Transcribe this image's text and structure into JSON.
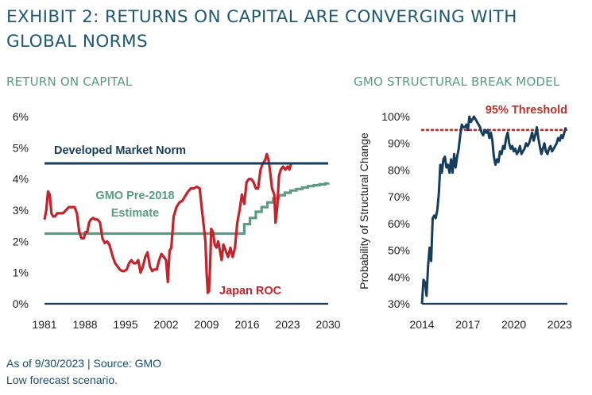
{
  "header": {
    "title": "EXHIBIT 2: RETURNS ON CAPITAL ARE CONVERGING WITH GLOBAL NORMS"
  },
  "footer": {
    "source": "As of 9/30/2023 | Source: GMO",
    "note": "Low forecast scenario."
  },
  "colors": {
    "title": "#1e5a73",
    "subtitle": "#5a9a86",
    "navy": "#163d5c",
    "red": "#c3242b",
    "green": "#5a9a86",
    "threshold": "#b5342e"
  },
  "chart_data": [
    {
      "type": "line",
      "title": "RETURN ON CAPITAL",
      "xlabel": "",
      "ylabel": "",
      "xlim": [
        1981,
        2030
      ],
      "ylim": [
        0,
        6
      ],
      "xticks": [
        1981,
        1988,
        1995,
        2002,
        2009,
        2016,
        2023,
        2030
      ],
      "yticks": [
        0,
        1,
        2,
        3,
        4,
        5,
        6
      ],
      "ytick_labels": [
        "0%",
        "1%",
        "2%",
        "3%",
        "4%",
        "5%",
        "6%"
      ],
      "grid": false,
      "annotations": {
        "norm_label": "Developed Market Norm",
        "estimate_label_line1": "GMO Pre-2018",
        "estimate_label_line2": "Estimate",
        "roc_label": "Japan ROC"
      },
      "series": [
        {
          "name": "Japan ROC",
          "color": "#c3242b",
          "x": [
            1981.0,
            1981.3,
            1981.6,
            1981.9,
            1982.2,
            1982.5,
            1982.8,
            1983.2,
            1983.7,
            1984.2,
            1984.7,
            1985.2,
            1985.7,
            1986.2,
            1986.6,
            1987.0,
            1987.4,
            1987.8,
            1988.1,
            1988.4,
            1988.7,
            1989.0,
            1989.4,
            1989.8,
            1990.2,
            1990.6,
            1991.0,
            1991.4,
            1991.8,
            1992.2,
            1992.5,
            1992.8,
            1993.2,
            1993.6,
            1994.0,
            1994.4,
            1994.8,
            1995.2,
            1995.6,
            1996.0,
            1996.4,
            1996.8,
            1997.2,
            1997.6,
            1998.0,
            1998.4,
            1998.8,
            1999.2,
            1999.6,
            2000.0,
            2000.4,
            2000.8,
            2001.2,
            2001.6,
            2002.0,
            2002.3,
            2002.6,
            2002.9,
            2003.3,
            2003.8,
            2004.3,
            2004.8,
            2005.3,
            2005.8,
            2006.3,
            2006.8,
            2007.3,
            2007.8,
            2008.2,
            2008.5,
            2008.8,
            2009.0,
            2009.2,
            2009.4,
            2009.6,
            2009.8,
            2010.1,
            2010.4,
            2010.7,
            2011.0,
            2011.3,
            2011.6,
            2011.9,
            2012.3,
            2012.7,
            2013.1,
            2013.5,
            2013.9,
            2014.3,
            2014.7,
            2015.1,
            2015.5,
            2015.9,
            2016.3,
            2016.7,
            2017.1,
            2017.5,
            2017.9,
            2018.3,
            2018.7,
            2019.1,
            2019.4,
            2019.7,
            2020.0,
            2020.3,
            2020.5,
            2020.7,
            2020.9,
            2021.2,
            2021.5,
            2021.8,
            2022.2,
            2022.6,
            2023.0,
            2023.3,
            2023.6
          ],
          "values": [
            2.7,
            3.0,
            3.6,
            3.5,
            2.9,
            2.8,
            2.8,
            2.9,
            2.9,
            2.9,
            3.0,
            3.1,
            3.1,
            3.1,
            2.9,
            2.3,
            2.1,
            2.1,
            2.3,
            2.3,
            2.6,
            2.7,
            2.75,
            2.7,
            2.7,
            2.6,
            2.1,
            1.95,
            2.0,
            1.9,
            1.7,
            1.5,
            1.3,
            1.2,
            1.1,
            1.05,
            1.05,
            1.1,
            1.3,
            1.4,
            1.3,
            1.3,
            1.4,
            1.0,
            1.2,
            1.5,
            1.65,
            1.2,
            1.05,
            1.1,
            1.1,
            1.4,
            1.6,
            1.5,
            1.4,
            0.7,
            1.7,
            1.8,
            2.8,
            3.1,
            3.25,
            3.3,
            3.45,
            3.6,
            3.7,
            3.7,
            3.75,
            3.7,
            3.0,
            2.5,
            2.0,
            1.0,
            0.35,
            0.4,
            1.2,
            2.4,
            2.3,
            1.9,
            1.8,
            2.0,
            1.7,
            1.4,
            1.9,
            1.7,
            1.5,
            1.8,
            1.5,
            1.8,
            2.6,
            3.0,
            3.5,
            3.2,
            3.9,
            4.0,
            4.0,
            3.9,
            3.7,
            3.7,
            4.3,
            4.5,
            4.6,
            4.8,
            4.6,
            4.2,
            3.7,
            3.6,
            3.5,
            2.6,
            3.1,
            4.1,
            4.3,
            4.4,
            4.3,
            4.4,
            4.3,
            4.5
          ]
        },
        {
          "name": "Developed Market Norm",
          "color": "#163d5c",
          "x": [
            1981,
            2030
          ],
          "values": [
            4.5,
            4.5
          ]
        },
        {
          "name": "GMO Pre-2018 Estimate",
          "color": "#5a9a86",
          "x": [
            1981.0,
            2014.5,
            2015.5,
            2016.5,
            2017.5,
            2018.5,
            2019.5,
            2020.5,
            2021.5,
            2022.5,
            2023.5,
            2024.5,
            2025.5,
            2026.5,
            2027.5,
            2028.5,
            2029.5,
            2030.0
          ],
          "values": [
            2.25,
            2.25,
            2.55,
            2.75,
            2.95,
            3.1,
            3.25,
            3.38,
            3.48,
            3.56,
            3.63,
            3.68,
            3.73,
            3.77,
            3.8,
            3.83,
            3.86,
            3.88
          ],
          "stepped": true
        }
      ]
    },
    {
      "type": "line",
      "title": "GMO STRUCTURAL BREAK MODEL",
      "xlabel": "",
      "ylabel": "Probability of Structural Change",
      "xlim": [
        2014,
        2023.5
      ],
      "ylim": [
        30,
        100
      ],
      "xticks": [
        2014,
        2017,
        2020,
        2023
      ],
      "yticks": [
        30,
        40,
        50,
        60,
        70,
        80,
        90,
        100
      ],
      "ytick_labels": [
        "30%",
        "40%",
        "50%",
        "60%",
        "70%",
        "80%",
        "90%",
        "100%"
      ],
      "grid": false,
      "annotations": {
        "threshold_label": "95% Threshold"
      },
      "threshold": 95,
      "series": [
        {
          "name": "Probability of Structural Change",
          "color": "#163d5c",
          "x": [
            2014.0,
            2014.1,
            2014.2,
            2014.3,
            2014.4,
            2014.5,
            2014.6,
            2014.7,
            2014.8,
            2014.9,
            2015.0,
            2015.1,
            2015.2,
            2015.3,
            2015.4,
            2015.5,
            2015.6,
            2015.7,
            2015.8,
            2015.9,
            2016.0,
            2016.1,
            2016.2,
            2016.3,
            2016.4,
            2016.5,
            2016.6,
            2016.7,
            2016.8,
            2016.9,
            2017.0,
            2017.1,
            2017.2,
            2017.3,
            2017.4,
            2017.5,
            2017.6,
            2017.7,
            2017.8,
            2017.9,
            2018.0,
            2018.1,
            2018.2,
            2018.3,
            2018.4,
            2018.5,
            2018.6,
            2018.7,
            2018.8,
            2018.9,
            2019.0,
            2019.1,
            2019.2,
            2019.3,
            2019.4,
            2019.5,
            2019.6,
            2019.7,
            2019.8,
            2019.9,
            2020.0,
            2020.1,
            2020.2,
            2020.3,
            2020.4,
            2020.5,
            2020.6,
            2020.7,
            2020.8,
            2020.9,
            2021.0,
            2021.1,
            2021.2,
            2021.3,
            2021.4,
            2021.5,
            2021.6,
            2021.7,
            2021.8,
            2021.9,
            2022.0,
            2022.1,
            2022.2,
            2022.3,
            2022.4,
            2022.5,
            2022.6,
            2022.7,
            2022.8,
            2022.9,
            2023.0,
            2023.1,
            2023.2,
            2023.3,
            2023.4
          ],
          "values": [
            30,
            39,
            38,
            33,
            44,
            51,
            46,
            62,
            63,
            62,
            65,
            71,
            82,
            79,
            84,
            85,
            81,
            82,
            79,
            84,
            79,
            86,
            81,
            85,
            88,
            93,
            97,
            96,
            96,
            97,
            95,
            100,
            98,
            99,
            100,
            99,
            98,
            97,
            96,
            94,
            93,
            95,
            94,
            95,
            92,
            94,
            91,
            85,
            82,
            84,
            83,
            87,
            86,
            89,
            88,
            92,
            94,
            90,
            88,
            89,
            87,
            88,
            86,
            87,
            89,
            86,
            87,
            88,
            90,
            89,
            90,
            92,
            94,
            91,
            93,
            96,
            92,
            89,
            86,
            88,
            90,
            87,
            86,
            88,
            89,
            87,
            88,
            89,
            90,
            92,
            91,
            93,
            92,
            94,
            96
          ]
        }
      ]
    }
  ]
}
